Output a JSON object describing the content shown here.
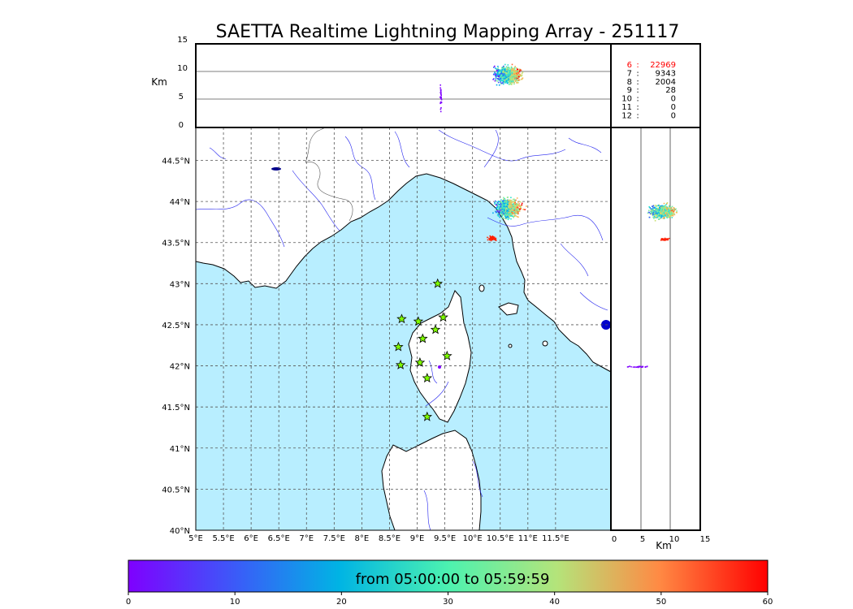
{
  "title": "SAETTA Realtime Lightning Mapping Array - 251117",
  "map": {
    "lon_range": [
      5,
      12.5
    ],
    "lat_range": [
      40,
      44.9
    ],
    "lon_ticks": [
      {
        "v": 5,
        "label": "5°E"
      },
      {
        "v": 5.5,
        "label": "5.5°E"
      },
      {
        "v": 6,
        "label": "6°E"
      },
      {
        "v": 6.5,
        "label": "6.5°E"
      },
      {
        "v": 7,
        "label": "7°E"
      },
      {
        "v": 7.5,
        "label": "7.5°E"
      },
      {
        "v": 8,
        "label": "8°E"
      },
      {
        "v": 8.5,
        "label": "8.5°E"
      },
      {
        "v": 9,
        "label": "9°E"
      },
      {
        "v": 9.5,
        "label": "9.5°E"
      },
      {
        "v": 10,
        "label": "10°E"
      },
      {
        "v": 10.5,
        "label": "10.5°E"
      },
      {
        "v": 11,
        "label": "11°E"
      },
      {
        "v": 11.5,
        "label": "11.5°E"
      }
    ],
    "lat_ticks": [
      {
        "v": 40,
        "label": "40°N"
      },
      {
        "v": 40.5,
        "label": "40.5°N"
      },
      {
        "v": 41,
        "label": "41°N"
      },
      {
        "v": 41.5,
        "label": "41.5°N"
      },
      {
        "v": 42,
        "label": "42°N"
      },
      {
        "v": 42.5,
        "label": "42.5°N"
      },
      {
        "v": 43,
        "label": "43°N"
      },
      {
        "v": 43.5,
        "label": "43.5°N"
      },
      {
        "v": 44,
        "label": "44°N"
      },
      {
        "v": 44.5,
        "label": "44.5°N"
      }
    ],
    "sea_color": "#b8eeff",
    "land_color": "#ffffff",
    "stations": [
      {
        "lon": 9.37,
        "lat": 43.0
      },
      {
        "lon": 8.72,
        "lat": 42.57
      },
      {
        "lon": 9.02,
        "lat": 42.54
      },
      {
        "lon": 9.47,
        "lat": 42.59
      },
      {
        "lon": 9.33,
        "lat": 42.44
      },
      {
        "lon": 9.1,
        "lat": 42.33
      },
      {
        "lon": 8.66,
        "lat": 42.23
      },
      {
        "lon": 9.54,
        "lat": 42.12
      },
      {
        "lon": 8.7,
        "lat": 42.01
      },
      {
        "lon": 9.05,
        "lat": 42.04
      },
      {
        "lon": 9.18,
        "lat": 41.85
      },
      {
        "lon": 9.18,
        "lat": 41.38
      }
    ],
    "station_color": "#7fff00"
  },
  "altitude_panel_top": {
    "ylabel": "Km",
    "y_ticks": [
      "0",
      "5",
      "10",
      "15"
    ]
  },
  "altitude_panel_right": {
    "xlabel": "Km",
    "x_ticks": [
      "0",
      "5",
      "10",
      "15"
    ]
  },
  "sources_table": {
    "rows": [
      {
        "stations": "6",
        "sep": ":",
        "count": "22969",
        "highlight": true
      },
      {
        "stations": "7",
        "sep": ":",
        "count": "9343",
        "highlight": false
      },
      {
        "stations": "8",
        "sep": ":",
        "count": "2004",
        "highlight": false
      },
      {
        "stations": "9",
        "sep": ":",
        "count": "28",
        "highlight": false
      },
      {
        "stations": "10",
        "sep": ":",
        "count": "0",
        "highlight": false
      },
      {
        "stations": "11",
        "sep": ":",
        "count": "0",
        "highlight": false
      },
      {
        "stations": "12",
        "sep": ":",
        "count": "0",
        "highlight": false
      }
    ],
    "highlight_color": "#ff0000"
  },
  "colorbar": {
    "label": "from 05:00:00 to 05:59:59",
    "ticks": [
      "0",
      "10",
      "20",
      "30",
      "40",
      "50",
      "60"
    ],
    "range": [
      0,
      60
    ]
  }
}
